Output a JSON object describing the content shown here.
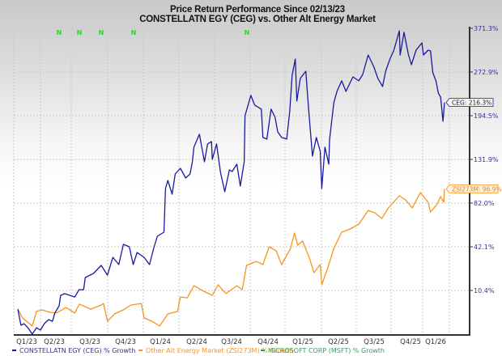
{
  "chart_data": {
    "type": "line",
    "title": "Price Return Performance Since 02/13/23",
    "subtitle": "CONSTELLATN EGY (CEG)   vs.  Other Alt Energy Market",
    "y_scale": "log",
    "y_ticks": [
      "371.3%",
      "272.9%",
      "194.5%",
      "131.9%",
      "82.0%",
      "42.1%",
      "10.4%"
    ],
    "y_tick_values": [
      371.3,
      272.9,
      194.5,
      131.9,
      82.0,
      42.1,
      10.4
    ],
    "x_tick_labels": [
      "Q1/23",
      "Q2/23",
      "Q3/23",
      "Q4/23",
      "Q1/24",
      "Q2/24",
      "Q3/24",
      "Q4/24",
      "Q1/25",
      "Q2/25",
      "Q3/25",
      "Q4/25",
      "Q1/26"
    ],
    "grid": true,
    "legend_placement": "bottom",
    "event_markers": [
      "N",
      "N",
      "N",
      "N",
      "N"
    ],
    "event_marker_color": "#22dd22",
    "series": [
      {
        "name": "CONSTELLATN EGY (CEG) % Growth",
        "color": "#1a1aa0",
        "end_label": "CEG: 216.3%",
        "points": [
          [
            "2023-02-13",
            -0.9
          ],
          [
            "2023-02-21",
            -9.7
          ],
          [
            "2023-03-01",
            -8.9
          ],
          [
            "2023-03-11",
            -11.0
          ],
          [
            "2023-03-22",
            -14.2
          ],
          [
            "2023-04-02",
            -11.0
          ],
          [
            "2023-04-12",
            -12.2
          ],
          [
            "2023-04-22",
            -8.9
          ],
          [
            "2023-05-03",
            -6.7
          ],
          [
            "2023-05-13",
            -7.6
          ],
          [
            "2023-05-19",
            -3.1
          ],
          [
            "2023-05-30",
            1.0
          ],
          [
            "2023-06-03",
            7.3
          ],
          [
            "2023-06-13",
            8.4
          ],
          [
            "2023-07-09",
            6.3
          ],
          [
            "2023-07-20",
            10.9
          ],
          [
            "2023-08-01",
            10.9
          ],
          [
            "2023-08-05",
            19.0
          ],
          [
            "2023-08-26",
            21.8
          ],
          [
            "2023-09-15",
            27.6
          ],
          [
            "2023-10-01",
            20.6
          ],
          [
            "2023-10-15",
            33.7
          ],
          [
            "2023-10-30",
            28.2
          ],
          [
            "2023-11-11",
            44.1
          ],
          [
            "2023-11-26",
            42.1
          ],
          [
            "2023-12-06",
            28.2
          ],
          [
            "2023-12-16",
            37.5
          ],
          [
            "2024-01-03",
            33.7
          ],
          [
            "2024-01-17",
            28.2
          ],
          [
            "2024-01-27",
            40.1
          ],
          [
            "2024-02-06",
            50.8
          ],
          [
            "2024-02-23",
            54.3
          ],
          [
            "2024-02-27",
            97.3
          ],
          [
            "2024-03-04",
            106.4
          ],
          [
            "2024-03-15",
            91.2
          ],
          [
            "2024-03-23",
            113.9
          ],
          [
            "2024-04-05",
            120.7
          ],
          [
            "2024-04-19",
            109.2
          ],
          [
            "2024-04-30",
            113.9
          ],
          [
            "2024-05-06",
            128.8
          ],
          [
            "2024-05-10",
            147.9
          ],
          [
            "2024-05-24",
            166.1
          ],
          [
            "2024-06-06",
            128.8
          ],
          [
            "2024-06-14",
            152.3
          ],
          [
            "2024-06-24",
            155.7
          ],
          [
            "2024-06-26",
            131.9
          ],
          [
            "2024-07-07",
            152.3
          ],
          [
            "2024-07-17",
            115.8
          ],
          [
            "2024-07-28",
            93.8
          ],
          [
            "2024-08-09",
            118.8
          ],
          [
            "2024-08-16",
            116.8
          ],
          [
            "2024-08-28",
            125.8
          ],
          [
            "2024-09-06",
            100.0
          ],
          [
            "2024-09-16",
            128.8
          ],
          [
            "2024-09-18",
            194.5
          ],
          [
            "2024-10-03",
            228.6
          ],
          [
            "2024-10-13",
            211.8
          ],
          [
            "2024-10-30",
            205.1
          ],
          [
            "2024-11-03",
            161.4
          ],
          [
            "2024-11-13",
            159.1
          ],
          [
            "2024-11-24",
            205.1
          ],
          [
            "2024-12-04",
            192.0
          ],
          [
            "2024-12-11",
            169.6
          ],
          [
            "2024-12-21",
            161.4
          ],
          [
            "2025-01-03",
            159.1
          ],
          [
            "2025-01-11",
            202.4
          ],
          [
            "2025-01-17",
            266.5
          ],
          [
            "2025-01-25",
            299.7
          ],
          [
            "2025-01-29",
            218.7
          ],
          [
            "2025-02-07",
            260.2
          ],
          [
            "2025-02-21",
            274.6
          ],
          [
            "2025-02-28",
            207.8
          ],
          [
            "2025-03-10",
            136.1
          ],
          [
            "2025-03-20",
            161.4
          ],
          [
            "2025-03-30",
            142.4
          ],
          [
            "2025-04-03",
            97.3
          ],
          [
            "2025-04-11",
            147.9
          ],
          [
            "2025-04-21",
            125.8
          ],
          [
            "2025-04-23",
            157.9
          ],
          [
            "2025-05-04",
            216.0
          ],
          [
            "2025-05-12",
            235.9
          ],
          [
            "2025-05-24",
            255.5
          ],
          [
            "2025-06-04",
            235.9
          ],
          [
            "2025-06-22",
            263.3
          ],
          [
            "2025-07-07",
            255.5
          ],
          [
            "2025-07-17",
            268.1
          ],
          [
            "2025-07-31",
            308.5
          ],
          [
            "2025-08-15",
            282.8
          ],
          [
            "2025-08-25",
            260.2
          ],
          [
            "2025-09-06",
            244.8
          ],
          [
            "2025-09-14",
            274.6
          ],
          [
            "2025-09-25",
            299.7
          ],
          [
            "2025-10-05",
            319.2
          ],
          [
            "2025-10-19",
            365.1
          ],
          [
            "2025-10-21",
            308.5
          ],
          [
            "2025-10-31",
            361.1
          ],
          [
            "2025-11-11",
            310.2
          ],
          [
            "2025-11-19",
            287.8
          ],
          [
            "2025-12-01",
            319.2
          ],
          [
            "2025-12-16",
            335.9
          ],
          [
            "2025-12-20",
            308.5
          ],
          [
            "2026-01-01",
            319.2
          ],
          [
            "2026-01-07",
            317.4
          ],
          [
            "2026-01-13",
            271.3
          ],
          [
            "2026-01-21",
            255.5
          ],
          [
            "2026-01-27",
            233.0
          ],
          [
            "2026-02-02",
            225.7
          ],
          [
            "2026-02-08",
            185.6
          ],
          [
            "2026-02-12",
            216.3
          ]
        ]
      },
      {
        "name": "Other Alt Energy Market (ZSI273M) % Growth",
        "color": "#f7941d",
        "end_label": "ZSI273M: 96.9%",
        "points": [
          [
            "2023-02-13",
            -0.9
          ],
          [
            "2023-02-25",
            -5.8
          ],
          [
            "2023-03-22",
            -10.1
          ],
          [
            "2023-04-02",
            -2.2
          ],
          [
            "2023-04-16",
            -1.3
          ],
          [
            "2023-05-07",
            -2.7
          ],
          [
            "2023-05-23",
            -3.1
          ],
          [
            "2023-06-17",
            0.1
          ],
          [
            "2023-07-09",
            -3.1
          ],
          [
            "2023-07-21",
            2.0
          ],
          [
            "2023-08-19",
            -0.9
          ],
          [
            "2023-09-15",
            1.5
          ],
          [
            "2023-09-21",
            2.4
          ],
          [
            "2023-10-01",
            -7.6
          ],
          [
            "2023-10-19",
            -3.6
          ],
          [
            "2023-11-11",
            -1.3
          ],
          [
            "2023-11-30",
            1.5
          ],
          [
            "2023-12-27",
            2.4
          ],
          [
            "2024-01-03",
            -5.8
          ],
          [
            "2024-01-23",
            -7.6
          ],
          [
            "2024-02-12",
            -10.1
          ],
          [
            "2024-03-04",
            -3.6
          ],
          [
            "2024-03-29",
            -2.2
          ],
          [
            "2024-04-05",
            6.3
          ],
          [
            "2024-04-23",
            5.8
          ],
          [
            "2024-05-10",
            13.5
          ],
          [
            "2024-06-04",
            9.9
          ],
          [
            "2024-06-26",
            7.3
          ],
          [
            "2024-07-11",
            14.1
          ],
          [
            "2024-07-31",
            8.4
          ],
          [
            "2024-08-28",
            13.5
          ],
          [
            "2024-09-11",
            10.9
          ],
          [
            "2024-09-22",
            27.6
          ],
          [
            "2024-10-17",
            30.6
          ],
          [
            "2024-11-03",
            28.2
          ],
          [
            "2024-11-19",
            42.1
          ],
          [
            "2024-12-07",
            38.8
          ],
          [
            "2024-12-21",
            28.2
          ],
          [
            "2025-01-13",
            40.8
          ],
          [
            "2025-01-23",
            53.6
          ],
          [
            "2025-01-31",
            43.4
          ],
          [
            "2025-02-13",
            46.7
          ],
          [
            "2025-03-03",
            32.5
          ],
          [
            "2025-03-14",
            22.3
          ],
          [
            "2025-03-30",
            28.2
          ],
          [
            "2025-04-03",
            14.1
          ],
          [
            "2025-04-17",
            24.7
          ],
          [
            "2025-05-04",
            40.8
          ],
          [
            "2025-05-24",
            54.3
          ],
          [
            "2025-06-15",
            57.2
          ],
          [
            "2025-07-07",
            61.5
          ],
          [
            "2025-07-31",
            74.6
          ],
          [
            "2025-08-17",
            72.3
          ],
          [
            "2025-09-04",
            66.8
          ],
          [
            "2025-09-21",
            77.1
          ],
          [
            "2025-10-19",
            89.5
          ],
          [
            "2025-11-04",
            85.3
          ],
          [
            "2025-11-21",
            77.1
          ],
          [
            "2025-12-12",
            92.9
          ],
          [
            "2026-01-01",
            82.8
          ],
          [
            "2026-01-07",
            73.0
          ],
          [
            "2026-01-23",
            80.3
          ],
          [
            "2026-02-02",
            88.7
          ],
          [
            "2026-02-10",
            82.8
          ],
          [
            "2026-02-12",
            96.9
          ]
        ]
      },
      {
        "name": "MICROSOFT CORP (MSFT) % Growth",
        "color": "#3a9a5a",
        "points": []
      }
    ]
  }
}
